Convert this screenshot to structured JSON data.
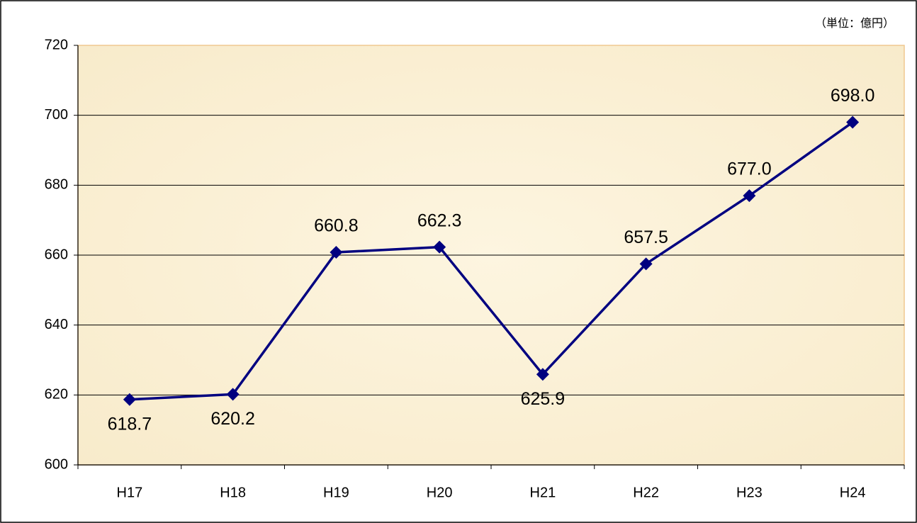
{
  "chart_data": {
    "type": "line",
    "annotation": "（単位：億円）",
    "categories": [
      "H17",
      "H18",
      "H19",
      "H20",
      "H21",
      "H22",
      "H23",
      "H24"
    ],
    "values": [
      618.7,
      620.2,
      660.8,
      662.3,
      625.9,
      657.5,
      677.0,
      698.0
    ],
    "value_labels": [
      "618.7",
      "620.2",
      "660.8",
      "662.3",
      "625.9",
      "657.5",
      "677.0",
      "698.0"
    ],
    "color": "#000080",
    "ylim": [
      600,
      720
    ],
    "yticks": [
      600,
      620,
      640,
      660,
      680,
      700,
      720
    ],
    "grid": true
  }
}
